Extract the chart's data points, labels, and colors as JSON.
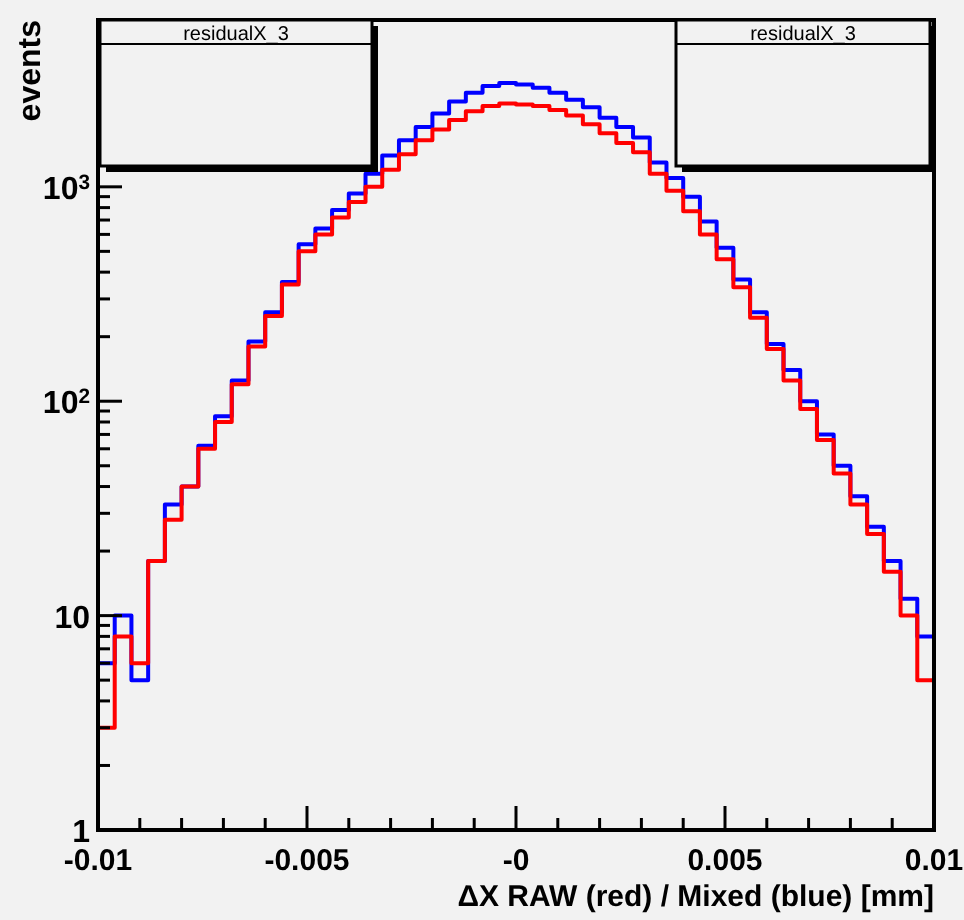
{
  "chart_data": {
    "type": "histogram",
    "xlabel": "ΔX RAW (red) / Mixed (blue) [mm]",
    "ylabel": "events",
    "log": "y",
    "grid": false,
    "annotations": [
      "residualX_3",
      "residualX_3"
    ],
    "bins": [
      -0.01,
      -0.0096,
      -0.0092,
      -0.0088,
      -0.0084,
      -0.008,
      -0.0076,
      -0.0072,
      -0.0068,
      -0.0064,
      -0.006,
      -0.0056,
      -0.0052,
      -0.0048,
      -0.0044,
      -0.004,
      -0.0036,
      -0.0032,
      -0.0028,
      -0.0024,
      -0.002,
      -0.0016,
      -0.0012,
      -0.0008,
      -0.0004,
      0,
      0.0004,
      0.0008,
      0.0012,
      0.0016,
      0.002,
      0.0024,
      0.0028,
      0.0032,
      0.0036,
      0.004,
      0.0044,
      0.0048,
      0.0052,
      0.0056,
      0.006,
      0.0064,
      0.0068,
      0.0072,
      0.0076,
      0.008,
      0.0084,
      0.0088,
      0.0092,
      0.0096,
      0.01
    ],
    "series": [
      {
        "color": "#0000ff",
        "values": [
          6,
          10,
          5,
          18,
          33,
          40,
          62,
          85,
          125,
          190,
          260,
          360,
          540,
          640,
          780,
          930,
          1150,
          1400,
          1650,
          1900,
          2200,
          2500,
          2750,
          2950,
          3050,
          3000,
          2900,
          2750,
          2550,
          2350,
          2100,
          1900,
          1700,
          1300,
          1100,
          900,
          690,
          520,
          370,
          260,
          185,
          140,
          100,
          70,
          50,
          36,
          26,
          18,
          12,
          8
        ]
      },
      {
        "color": "#ff0000",
        "values": [
          3,
          8,
          6,
          18,
          28,
          40,
          60,
          80,
          120,
          180,
          250,
          350,
          500,
          600,
          720,
          850,
          1000,
          1200,
          1420,
          1650,
          1850,
          2050,
          2250,
          2380,
          2450,
          2420,
          2380,
          2280,
          2150,
          1960,
          1780,
          1600,
          1450,
          1150,
          960,
          770,
          600,
          460,
          340,
          245,
          175,
          125,
          92,
          66,
          46,
          33,
          24,
          16,
          10,
          5
        ]
      }
    ],
    "xlim": [
      -0.01,
      0.01
    ],
    "xticks": [
      -0.01,
      {
        "value": -0.009,
        "label": null
      },
      {
        "value": -0.008,
        "label": null
      },
      {
        "value": -0.007,
        "label": null
      },
      {
        "value": -0.006,
        "label": null
      },
      -0.005,
      {
        "value": -0.004,
        "label": null
      },
      {
        "value": -0.003,
        "label": null
      },
      {
        "value": -0.002,
        "label": null
      },
      {
        "value": -0.001,
        "label": null
      },
      {
        "value": 0,
        "label": "-0"
      },
      {
        "value": 0.001,
        "label": null
      },
      {
        "value": 0.002,
        "label": null
      },
      {
        "value": 0.003,
        "label": null
      },
      {
        "value": 0.004,
        "label": null
      },
      0.005,
      {
        "value": 0.006,
        "label": null
      },
      {
        "value": 0.007,
        "label": null
      },
      {
        "value": 0.008,
        "label": null
      },
      {
        "value": 0.009,
        "label": null
      },
      0.01
    ],
    "ylim": [
      1,
      6000
    ],
    "yticks": [
      1,
      {
        "value": 2,
        "label": null
      },
      {
        "value": 3,
        "label": null
      },
      {
        "value": 4,
        "label": null
      },
      {
        "value": 5,
        "label": null
      },
      {
        "value": 6,
        "label": null
      },
      {
        "value": 7,
        "label": null
      },
      {
        "value": 8,
        "label": null
      },
      {
        "value": 9,
        "label": null
      },
      10,
      {
        "value": 20,
        "label": null
      },
      {
        "value": 30,
        "label": null
      },
      {
        "value": 40,
        "label": null
      },
      {
        "value": 50,
        "label": null
      },
      {
        "value": 60,
        "label": null
      },
      {
        "value": 70,
        "label": null
      },
      {
        "value": 80,
        "label": null
      },
      {
        "value": 90,
        "label": null
      },
      {
        "value": 100,
        "label": "10$^{2}$"
      },
      {
        "value": 200,
        "label": null
      },
      {
        "value": 300,
        "label": null
      },
      {
        "value": 400,
        "label": null
      },
      {
        "value": 500,
        "label": null
      },
      {
        "value": 600,
        "label": null
      },
      {
        "value": 700,
        "label": null
      },
      {
        "value": 800,
        "label": null
      },
      {
        "value": 900,
        "label": null
      },
      {
        "value": 1000,
        "label": "10$^{3}$"
      },
      {
        "value": 2000,
        "label": null
      },
      {
        "value": 3000,
        "label": null
      },
      {
        "value": 4000,
        "label": null
      },
      {
        "value": 5000,
        "label": null
      }
    ]
  }
}
